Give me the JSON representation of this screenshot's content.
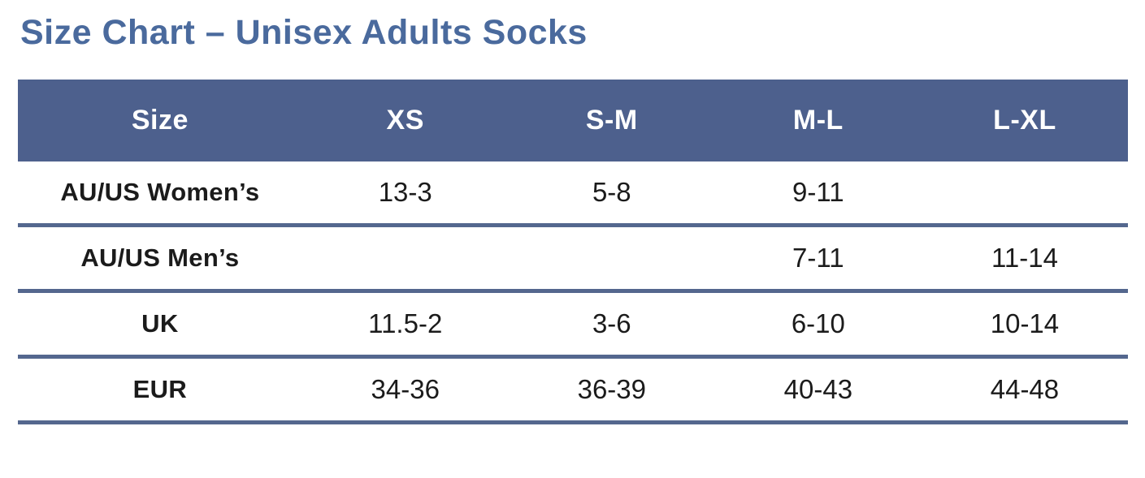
{
  "title": "Size Chart – Unisex Adults Socks",
  "colors": {
    "title_text": "#4a6a9d",
    "header_bg": "#4d608d",
    "header_text": "#ffffff",
    "divider": "#54678e",
    "body_text": "#1b1b1b"
  },
  "table": {
    "columns": [
      "Size",
      "XS",
      "S-M",
      "M-L",
      "L-XL"
    ],
    "rows": [
      {
        "label": "AU/US Women’s",
        "values": [
          "13-3",
          "5-8",
          "9-11",
          ""
        ]
      },
      {
        "label": "AU/US Men’s",
        "values": [
          "",
          "",
          "7-11",
          "11-14"
        ]
      },
      {
        "label": "UK",
        "values": [
          "11.5-2",
          "3-6",
          "6-10",
          "10-14"
        ]
      },
      {
        "label": "EUR",
        "values": [
          "34-36",
          "36-39",
          "40-43",
          "44-48"
        ]
      }
    ]
  }
}
